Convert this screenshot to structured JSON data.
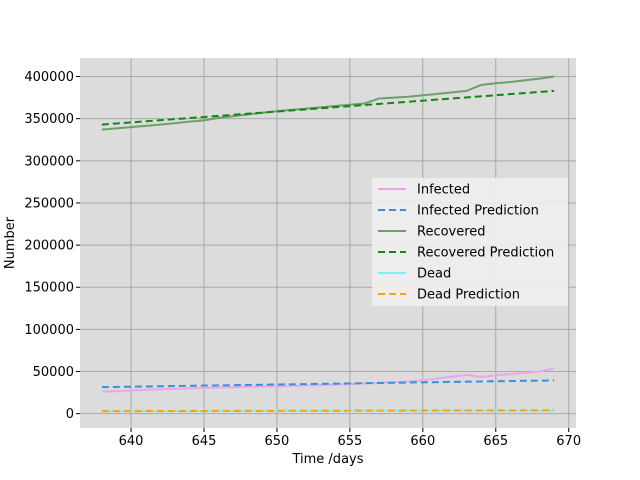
{
  "chart_data": {
    "type": "line",
    "xlabel": "Time /days",
    "ylabel": "Number",
    "xlim": [
      636.5,
      670.5
    ],
    "ylim": [
      -17000,
      422000
    ],
    "xticks": [
      640,
      645,
      650,
      655,
      660,
      665,
      670
    ],
    "yticks": [
      0,
      50000,
      100000,
      150000,
      200000,
      250000,
      300000,
      350000,
      400000
    ],
    "grid": true,
    "legend_position": "center-right",
    "colors": {
      "plot_background": "#dcdcdc",
      "grid": "#a9a9a9",
      "legend_background": "#eeeeee"
    },
    "series": [
      {
        "name": "Infected",
        "color": "#e8a8e8",
        "style": "solid",
        "x": [
          638,
          640,
          642,
          644,
          646,
          648,
          650,
          652,
          654,
          656,
          658,
          660,
          662,
          663,
          664,
          665,
          666,
          668,
          669
        ],
        "y": [
          26000,
          27500,
          29000,
          30000,
          31000,
          32000,
          32500,
          33500,
          34500,
          36000,
          37500,
          39500,
          44000,
          46000,
          43500,
          45500,
          47000,
          50000,
          53500
        ]
      },
      {
        "name": "Infected Prediction",
        "color": "#3a8fe0",
        "style": "dashed",
        "x": [
          638,
          669
        ],
        "y": [
          31500,
          39500
        ]
      },
      {
        "name": "Recovered",
        "color": "#6e9e6e",
        "style": "solid",
        "x": [
          638,
          640,
          642,
          644,
          645,
          646,
          648,
          650,
          652,
          654,
          656,
          657,
          659,
          661,
          663,
          664,
          665,
          666,
          668,
          669
        ],
        "y": [
          337000,
          340000,
          343000,
          346500,
          348000,
          351000,
          355000,
          359000,
          362000,
          365000,
          368000,
          374000,
          376000,
          379500,
          383000,
          390000,
          392000,
          393500,
          397500,
          400000
        ]
      },
      {
        "name": "Recovered Prediction",
        "color": "#118811",
        "style": "dashed",
        "x": [
          638,
          669
        ],
        "y": [
          343000,
          383000
        ]
      },
      {
        "name": "Dead",
        "color": "#7ef2f2",
        "style": "solid",
        "x": [
          638,
          669
        ],
        "y": [
          2800,
          3800
        ]
      },
      {
        "name": "Dead Prediction",
        "color": "#ffa010",
        "style": "dashed",
        "x": [
          638,
          669
        ],
        "y": [
          3000,
          4000
        ]
      }
    ]
  }
}
